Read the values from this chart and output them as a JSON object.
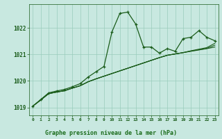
{
  "title": "Graphe pression niveau de la mer (hPa)",
  "bg_color": "#c8e8e0",
  "plot_bg_color": "#c8e8e0",
  "label_bg_color": "#2d6e2d",
  "grid_color": "#99ccbb",
  "line_color": "#1a5c1a",
  "text_color": "#1a5c1a",
  "label_text_color": "#1a6b1a",
  "xlim": [
    -0.5,
    23.5
  ],
  "ylim": [
    1018.7,
    1022.9
  ],
  "yticks": [
    1019,
    1020,
    1021,
    1022
  ],
  "xticks": [
    0,
    1,
    2,
    3,
    4,
    5,
    6,
    7,
    8,
    9,
    10,
    11,
    12,
    13,
    14,
    15,
    16,
    17,
    18,
    19,
    20,
    21,
    22,
    23
  ],
  "series_main": [
    1019.05,
    1019.3,
    1019.55,
    1019.62,
    1019.68,
    1019.78,
    1019.9,
    1020.15,
    1020.35,
    1020.55,
    1021.85,
    1022.55,
    1022.6,
    1022.15,
    1021.28,
    1021.28,
    1021.05,
    1021.22,
    1021.12,
    1021.6,
    1021.65,
    1021.9,
    1021.65,
    1021.52
  ],
  "series_smooth1": [
    1019.05,
    1019.28,
    1019.52,
    1019.58,
    1019.63,
    1019.73,
    1019.82,
    1019.97,
    1020.08,
    1020.18,
    1020.28,
    1020.38,
    1020.48,
    1020.58,
    1020.68,
    1020.78,
    1020.88,
    1020.97,
    1021.02,
    1021.07,
    1021.12,
    1021.17,
    1021.22,
    1021.28
  ],
  "series_smooth2": [
    1019.05,
    1019.28,
    1019.52,
    1019.58,
    1019.63,
    1019.73,
    1019.82,
    1019.97,
    1020.08,
    1020.18,
    1020.28,
    1020.38,
    1020.48,
    1020.58,
    1020.68,
    1020.78,
    1020.88,
    1020.97,
    1021.02,
    1021.07,
    1021.13,
    1021.18,
    1021.23,
    1021.35
  ],
  "series_smooth3": [
    1019.05,
    1019.28,
    1019.52,
    1019.58,
    1019.63,
    1019.73,
    1019.82,
    1019.97,
    1020.08,
    1020.18,
    1020.28,
    1020.38,
    1020.48,
    1020.58,
    1020.68,
    1020.78,
    1020.88,
    1020.97,
    1021.02,
    1021.07,
    1021.14,
    1021.2,
    1021.26,
    1021.42
  ]
}
